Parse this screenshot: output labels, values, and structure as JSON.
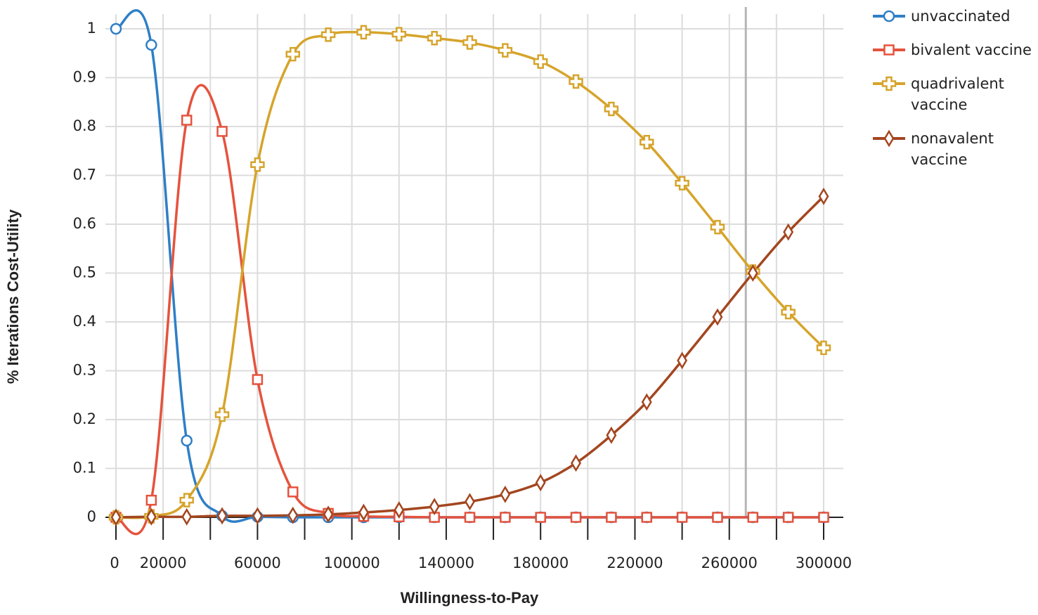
{
  "chart_data": {
    "type": "line",
    "x_label": "Willingness-to-Pay",
    "y_label": "% Iterations Cost-Utility",
    "x": [
      0,
      15000,
      30000,
      45000,
      60000,
      75000,
      90000,
      105000,
      120000,
      135000,
      150000,
      165000,
      180000,
      195000,
      210000,
      225000,
      240000,
      255000,
      270000,
      285000,
      300000
    ],
    "series": [
      {
        "name": "unvaccinated",
        "color": "#2f7fc6",
        "marker": "circle",
        "values": [
          1,
          0.967,
          0.157,
          0.003,
          0.001,
          0,
          0,
          0,
          0,
          0,
          0,
          0,
          0,
          0,
          0,
          0,
          0,
          0,
          0,
          0,
          0
        ]
      },
      {
        "name": "bivalent vaccine",
        "color": "#e5533d",
        "marker": "square",
        "values": [
          0,
          0.035,
          0.813,
          0.79,
          0.282,
          0.052,
          0.008,
          0.002,
          0.001,
          0,
          0,
          0,
          0,
          0,
          0,
          0,
          0,
          0,
          0,
          0,
          0
        ]
      },
      {
        "name": "quadrivalent vaccine",
        "color": "#d6a42b",
        "marker": "plus",
        "values": [
          0,
          0.002,
          0.035,
          0.21,
          0.722,
          0.948,
          0.988,
          0.993,
          0.989,
          0.981,
          0.972,
          0.956,
          0.933,
          0.892,
          0.836,
          0.768,
          0.684,
          0.594,
          0.503,
          0.42,
          0.347
        ]
      },
      {
        "name": "nonavalent vaccine",
        "color": "#a3461f",
        "marker": "diamond",
        "values": [
          0,
          0.001,
          0.001,
          0.003,
          0.003,
          0.004,
          0.006,
          0.01,
          0.015,
          0.022,
          0.032,
          0.047,
          0.071,
          0.111,
          0.168,
          0.236,
          0.321,
          0.41,
          0.5,
          0.584,
          0.657
        ]
      }
    ],
    "xlim": [
      0,
      300000
    ],
    "ylim": [
      0,
      1
    ],
    "xticks": [
      0,
      20000,
      60000,
      100000,
      140000,
      180000,
      220000,
      260000,
      300000
    ],
    "xticks_minor": [
      40000,
      80000,
      120000,
      160000,
      200000,
      240000,
      280000
    ],
    "yticks": [
      0,
      0.1,
      0.2,
      0.3,
      0.4,
      0.5,
      0.6,
      0.7,
      0.8,
      0.9,
      1
    ],
    "reference_x": 267000,
    "grid": true
  }
}
